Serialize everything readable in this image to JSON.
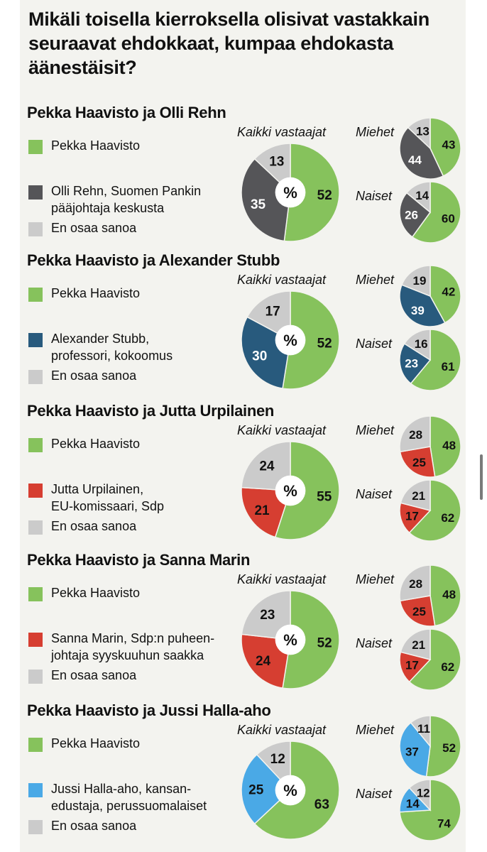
{
  "title": "Mikäli toisella kierroksella olisivat vastakkain seuraavat ehdokkaat, kumpaa ehdokasta äänestäisit?",
  "labels": {
    "all": "Kaikki vastaajat",
    "men": "Miehet",
    "women": "Naiset",
    "center": "%"
  },
  "colors": {
    "haavisto": "#86c25c",
    "rehn": "#555558",
    "stubb": "#285a7d",
    "urpilainen": "#d63e31",
    "marin": "#d63e31",
    "hallaaho": "#4aa9e6",
    "eos": "#cbcbcb"
  },
  "sections": [
    {
      "title": "Pekka Haavisto ja Olli Rehn",
      "legend": [
        "Pekka Haavisto",
        "Olli Rehn, Suomen Pankin\npääjohtaja keskusta",
        "En osaa sanoa"
      ]
    },
    {
      "title": "Pekka Haavisto ja Alexander Stubb",
      "legend": [
        "Pekka Haavisto",
        "Alexander Stubb,\nprofessori, kokoomus",
        "En osaa sanoa"
      ]
    },
    {
      "title": "Pekka Haavisto ja Jutta Urpilainen",
      "legend": [
        "Pekka Haavisto",
        "Jutta Urpilainen,\nEU-komissaari, Sdp",
        "En osaa sanoa"
      ]
    },
    {
      "title": "Pekka Haavisto ja Sanna Marin",
      "legend": [
        "Pekka Haavisto",
        "Sanna Marin, Sdp:n puheen-\njohtaja syyskuuhun saakka",
        "En osaa sanoa"
      ]
    },
    {
      "title": "Pekka Haavisto ja Jussi Halla-aho",
      "legend": [
        "Pekka Haavisto",
        "Jussi Halla-aho, kansan-\nedustaja, perussuomalaiset",
        "En osaa sanoa"
      ]
    }
  ],
  "chart_data": [
    {
      "type": "pie",
      "title": "Pekka Haavisto ja Olli Rehn",
      "categories": [
        "Pekka Haavisto",
        "Olli Rehn, Suomen Pankin pääjohtaja keskusta",
        "En osaa sanoa"
      ],
      "colors": [
        "#86c25c",
        "#555558",
        "#cbcbcb"
      ],
      "series": [
        {
          "name": "Kaikki vastaajat",
          "values": [
            52,
            35,
            13
          ]
        },
        {
          "name": "Miehet",
          "values": [
            43,
            44,
            13
          ]
        },
        {
          "name": "Naiset",
          "values": [
            60,
            26,
            14
          ]
        }
      ]
    },
    {
      "type": "pie",
      "title": "Pekka Haavisto ja Alexander Stubb",
      "categories": [
        "Pekka Haavisto",
        "Alexander Stubb, professori, kokoomus",
        "En osaa sanoa"
      ],
      "colors": [
        "#86c25c",
        "#285a7d",
        "#cbcbcb"
      ],
      "series": [
        {
          "name": "Kaikki vastaajat",
          "values": [
            52,
            30,
            17
          ]
        },
        {
          "name": "Miehet",
          "values": [
            42,
            39,
            19
          ]
        },
        {
          "name": "Naiset",
          "values": [
            61,
            23,
            16
          ]
        }
      ]
    },
    {
      "type": "pie",
      "title": "Pekka Haavisto ja Jutta Urpilainen",
      "categories": [
        "Pekka Haavisto",
        "Jutta Urpilainen, EU-komissaari, Sdp",
        "En osaa sanoa"
      ],
      "colors": [
        "#86c25c",
        "#d63e31",
        "#cbcbcb"
      ],
      "series": [
        {
          "name": "Kaikki vastaajat",
          "values": [
            55,
            21,
            24
          ]
        },
        {
          "name": "Miehet",
          "values": [
            48,
            25,
            28
          ]
        },
        {
          "name": "Naiset",
          "values": [
            62,
            17,
            21
          ]
        }
      ]
    },
    {
      "type": "pie",
      "title": "Pekka Haavisto ja Sanna Marin",
      "categories": [
        "Pekka Haavisto",
        "Sanna Marin, Sdp:n puheenjohtaja syyskuuhun saakka",
        "En osaa sanoa"
      ],
      "colors": [
        "#86c25c",
        "#d63e31",
        "#cbcbcb"
      ],
      "series": [
        {
          "name": "Kaikki vastaajat",
          "values": [
            52,
            24,
            23
          ]
        },
        {
          "name": "Miehet",
          "values": [
            48,
            25,
            28
          ]
        },
        {
          "name": "Naiset",
          "values": [
            62,
            17,
            21
          ]
        }
      ]
    },
    {
      "type": "pie",
      "title": "Pekka Haavisto ja Jussi Halla-aho",
      "categories": [
        "Pekka Haavisto",
        "Jussi Halla-aho, kansanedustaja, perussuomalaiset",
        "En osaa sanoa"
      ],
      "colors": [
        "#86c25c",
        "#4aa9e6",
        "#cbcbcb"
      ],
      "series": [
        {
          "name": "Kaikki vastaajat",
          "values": [
            63,
            25,
            12
          ]
        },
        {
          "name": "Miehet",
          "values": [
            52,
            37,
            11
          ]
        },
        {
          "name": "Naiset",
          "values": [
            74,
            14,
            12
          ]
        }
      ]
    }
  ]
}
